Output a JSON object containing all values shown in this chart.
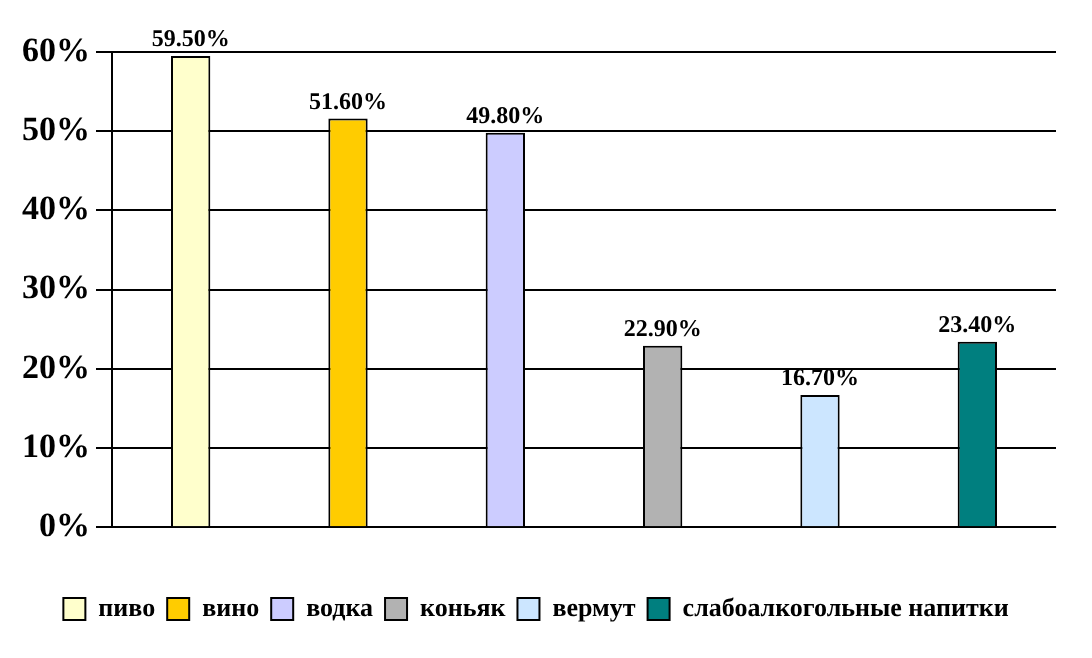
{
  "chart_data": {
    "type": "bar",
    "categories": [
      null
    ],
    "series": [
      {
        "name": "пиво",
        "color": "#ffffcc",
        "values": [
          59.5
        ]
      },
      {
        "name": "вино",
        "color": "#ffcc00",
        "values": [
          51.6
        ]
      },
      {
        "name": "водка",
        "color": "#ccccff",
        "values": [
          49.8
        ]
      },
      {
        "name": "коньяк",
        "color": "#b2b2b2",
        "values": [
          22.9
        ]
      },
      {
        "name": "вермут",
        "color": "#cce6ff",
        "values": [
          16.7
        ]
      },
      {
        "name": "слабоалкогольные напитки",
        "color": "#007f7f",
        "values": [
          23.4
        ]
      }
    ],
    "value_labels": [
      "59.50%",
      "51.60%",
      "49.80%",
      "22.90%",
      "16.70%",
      "23.40%"
    ],
    "ylim": [
      0,
      60
    ],
    "yticks": [
      {
        "value": 0,
        "label": "0%"
      },
      {
        "value": 10,
        "label": "10%"
      },
      {
        "value": 20,
        "label": "20%"
      },
      {
        "value": 30,
        "label": "30%"
      },
      {
        "value": 40,
        "label": "40%"
      },
      {
        "value": 50,
        "label": "50%"
      },
      {
        "value": 60,
        "label": "60%"
      }
    ],
    "grid": "y",
    "legend": "bottom"
  }
}
